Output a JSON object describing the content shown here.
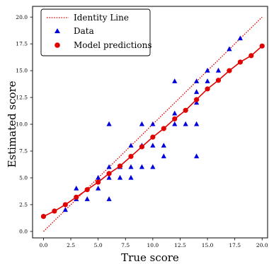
{
  "chart_data": {
    "type": "scatter",
    "xlabel": "True score",
    "ylabel": "Estimated score",
    "xlim": [
      -1,
      20.5
    ],
    "ylim": [
      -0.6,
      21
    ],
    "xticks": [
      0.0,
      2.5,
      5.0,
      7.5,
      10.0,
      12.5,
      15.0,
      17.5,
      20.0
    ],
    "yticks": [
      0.0,
      2.5,
      5.0,
      7.5,
      10.0,
      12.5,
      15.0,
      17.5,
      20.0
    ],
    "xtick_labels": [
      "0.0",
      "2.5",
      "5.0",
      "7.5",
      "10.0",
      "12.5",
      "15.0",
      "17.5",
      "20.0"
    ],
    "ytick_labels": [
      "0.0",
      "2.5",
      "5.0",
      "7.5",
      "10.0",
      "12.5",
      "15.0",
      "17.5",
      "20.0"
    ],
    "grid": false,
    "legend_position": "top-left",
    "colors": {
      "identity": "#e00000",
      "data": "#0000dd",
      "model": "#e00000"
    },
    "legend": [
      {
        "label": "Identity Line",
        "marker": "dotted-line"
      },
      {
        "label": "Data",
        "marker": "triangle"
      },
      {
        "label": "Model predictions",
        "marker": "circle"
      }
    ],
    "series": [
      {
        "name": "Identity Line",
        "kind": "line",
        "style": "dotted",
        "x": [
          0,
          20
        ],
        "y": [
          0,
          20
        ]
      },
      {
        "name": "Data",
        "kind": "scatter",
        "marker": "triangle",
        "x": [
          2,
          3,
          3,
          4,
          5,
          5,
          6,
          6,
          6,
          6,
          7,
          7,
          8,
          8,
          8,
          9,
          9,
          9,
          10,
          10,
          10,
          11,
          11,
          12,
          12,
          12,
          13,
          14,
          14,
          14,
          14,
          14,
          15,
          15,
          16,
          17,
          18
        ],
        "y": [
          2,
          3,
          4,
          3,
          4,
          5,
          3,
          5,
          6,
          10,
          5,
          6,
          5,
          6,
          8,
          6,
          8,
          10,
          6,
          8,
          10,
          7,
          8,
          10,
          11,
          14,
          10,
          7,
          10,
          12,
          13,
          14,
          14,
          15,
          15,
          17,
          18
        ]
      },
      {
        "name": "Model predictions",
        "kind": "line+marker",
        "marker": "circle",
        "x": [
          0,
          1,
          2,
          3,
          4,
          5,
          6,
          7,
          8,
          9,
          10,
          11,
          12,
          13,
          14,
          15,
          16,
          17,
          18,
          19,
          20
        ],
        "y": [
          1.4,
          1.9,
          2.5,
          3.2,
          3.9,
          4.6,
          5.4,
          6.1,
          7.0,
          7.9,
          8.8,
          9.6,
          10.5,
          11.3,
          12.3,
          13.3,
          14.1,
          15.0,
          15.8,
          16.4,
          17.3
        ]
      }
    ]
  }
}
